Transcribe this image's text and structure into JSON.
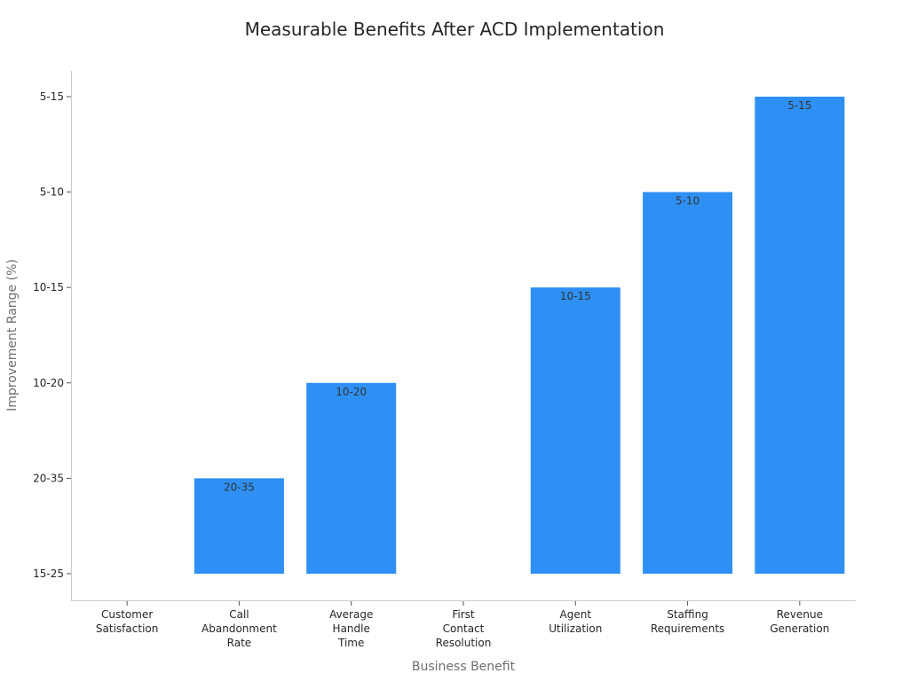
{
  "chart_data": {
    "type": "bar",
    "title": "Measurable Benefits After ACD Implementation",
    "xlabel": "Business Benefit",
    "ylabel": "Improvement Range (%)",
    "y_categories": [
      "15-25",
      "20-35",
      "10-20",
      "10-15",
      "5-10",
      "5-15"
    ],
    "categories": [
      [
        "Customer",
        "Satisfaction"
      ],
      [
        "Call",
        "Abandonment",
        "Rate"
      ],
      [
        "Average",
        "Handle",
        "Time"
      ],
      [
        "First",
        "Contact",
        "Resolution"
      ],
      [
        "Agent",
        "Utilization"
      ],
      [
        "Staffing",
        "Requirements"
      ],
      [
        "Revenue",
        "Generation"
      ]
    ],
    "values": [
      "15-25",
      "20-35",
      "10-20",
      "15-25",
      "10-15",
      "5-10",
      "5-15"
    ],
    "data_labels": [
      "",
      "20-35",
      "10-20",
      "",
      "10-15",
      "5-10",
      "5-15"
    ],
    "grid": false,
    "legend": "none",
    "bar_color": "#2e90f5"
  }
}
